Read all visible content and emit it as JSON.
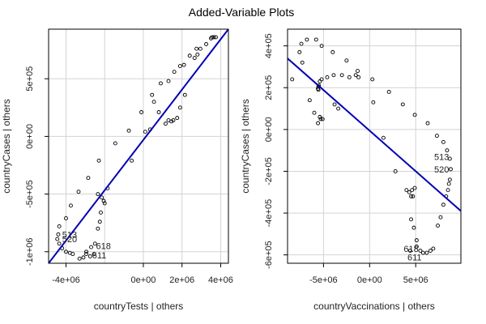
{
  "chart_data": {
    "type": "scatter",
    "title": "Added-Variable Plots",
    "panels": [
      {
        "id": "tests",
        "xlabel": "countryTests | others",
        "ylabel": "countryCases | others",
        "xlim": [
          -4900000.0,
          4400000.0
        ],
        "ylim": [
          -1100000.0,
          930000.0
        ],
        "xticks": [
          -4000000.0,
          0,
          2000000.0,
          4000000.0
        ],
        "xtick_labels": [
          "-4e+06",
          "0e+00",
          "2e+06",
          "4e+06"
        ],
        "yticks": [
          -1000000.0,
          -500000.0,
          0,
          500000.0
        ],
        "ytick_labels": [
          "-1e+06",
          "-5e+05",
          "0e+00",
          "5e+05"
        ],
        "xgrid": [
          -4000000.0,
          -2000000.0,
          0,
          2000000.0,
          4000000.0
        ],
        "ygrid": [
          -1000000.0,
          -500000.0,
          0,
          500000.0
        ],
        "fit_line": [
          [
            -4900000.0,
            -1100000.0
          ],
          [
            4400000.0,
            930000.0
          ]
        ],
        "points": [
          [
            3750000.0,
            860000.0
          ],
          [
            3650000.0,
            860000.0
          ],
          [
            3550000.0,
            860000.0
          ],
          [
            3500000.0,
            850000.0
          ],
          [
            3250000.0,
            800000.0
          ],
          [
            2950000.0,
            760000.0
          ],
          [
            2750000.0,
            760000.0
          ],
          [
            2800000.0,
            710000.0
          ],
          [
            2400000.0,
            700000.0
          ],
          [
            2650000.0,
            680000.0
          ],
          [
            2100000.0,
            620000.0
          ],
          [
            1900000.0,
            610000.0
          ],
          [
            1600000.0,
            560000.0
          ],
          [
            1300000.0,
            480000.0
          ],
          [
            900000.0,
            460000.0
          ],
          [
            450000.0,
            360000.0
          ],
          [
            550000.0,
            300000.0
          ],
          [
            2150000.0,
            360000.0
          ],
          [
            -100000.0,
            210000.0
          ],
          [
            800000.0,
            210000.0
          ],
          [
            1900000.0,
            250000.0
          ],
          [
            1750000.0,
            160000.0
          ],
          [
            1550000.0,
            140000.0
          ],
          [
            1450000.0,
            130000.0
          ],
          [
            1300000.0,
            140000.0
          ],
          [
            1150000.0,
            110000.0
          ],
          [
            350000.0,
            60000.0
          ],
          [
            100000.0,
            40000.0
          ],
          [
            -750000.0,
            50000.0
          ],
          [
            -1450000.0,
            -60000.0
          ],
          [
            -600000.0,
            -210000.0
          ],
          [
            -2300000.0,
            -210000.0
          ],
          [
            -1850000.0,
            -450000.0
          ],
          [
            -2350000.0,
            -500000.0
          ],
          [
            -2150000.0,
            -530000.0
          ],
          [
            -2050000.0,
            -560000.0
          ],
          [
            -2000000.0,
            -580000.0
          ],
          [
            -2850000.0,
            -360000.0
          ],
          [
            -3350000.0,
            -480000.0
          ],
          [
            -3750000.0,
            -600000.0
          ],
          [
            -2200000.0,
            -660000.0
          ],
          [
            -2250000.0,
            -740000.0
          ],
          [
            -2350000.0,
            -800000.0
          ],
          [
            -4000000.0,
            -710000.0
          ],
          [
            -4350000.0,
            -780000.0
          ],
          [
            -4400000.0,
            -850000.0
          ],
          [
            -4450000.0,
            -890000.0
          ],
          [
            -4350000.0,
            -930000.0
          ],
          [
            -4200000.0,
            -970000.0
          ],
          [
            -4000000.0,
            -1000000.0
          ],
          [
            -3800000.0,
            -1010000.0
          ],
          [
            -3650000.0,
            -1020000.0
          ],
          [
            -3300000.0,
            -1060000.0
          ],
          [
            -2950000.0,
            -1000000.0
          ],
          [
            -2700000.0,
            -960000.0
          ],
          [
            -2500000.0,
            -930000.0
          ],
          [
            -2550000.0,
            -1020000.0
          ],
          [
            -2950000.0,
            -1020000.0
          ],
          [
            -2750000.0,
            -1040000.0
          ],
          [
            -3100000.0,
            -1050000.0
          ]
        ],
        "labels": [
          {
            "text": "513",
            "x": -4200000.0,
            "y": -850000.0
          },
          {
            "text": "520",
            "x": -4200000.0,
            "y": -890000.0
          },
          {
            "text": "618",
            "x": -2450000.0,
            "y": -950000.0
          },
          {
            "text": "611",
            "x": -2650000.0,
            "y": -1030000.0
          }
        ]
      },
      {
        "id": "vaccinations",
        "xlabel": "countryVaccinations | others",
        "ylabel": "countryCases | others",
        "xlim": [
          -8900000.0,
          9900000.0
        ],
        "ylim": [
          -640000.0,
          480000.0
        ],
        "xticks": [
          -5000000.0,
          0,
          5000000.0
        ],
        "xtick_labels": [
          "-5e+06",
          "0e+00",
          "5e+06"
        ],
        "yticks": [
          -600000.0,
          -400000.0,
          -200000.0,
          0,
          200000.0,
          400000.0
        ],
        "ytick_labels": [
          "-6e+05",
          "-4e+05",
          "-2e+05",
          "0e+00",
          "2e+05",
          "4e+05"
        ],
        "xgrid": [
          -5000000.0,
          0,
          5000000.0
        ],
        "ygrid": [
          -600000.0,
          -400000.0,
          -200000.0,
          0,
          200000.0,
          400000.0
        ],
        "fit_line": [
          [
            -8900000.0,
            340000.0
          ],
          [
            9900000.0,
            -390000.0
          ]
        ],
        "points": [
          [
            -7600000.0,
            370000.0
          ],
          [
            -7400000.0,
            410000.0
          ],
          [
            -6800000.0,
            430000.0
          ],
          [
            -5800000.0,
            430000.0
          ],
          [
            -5200000.0,
            400000.0
          ],
          [
            -7300000.0,
            320000.0
          ],
          [
            -8400000.0,
            240000.0
          ],
          [
            -5400000.0,
            230000.0
          ],
          [
            -4600000.0,
            250000.0
          ],
          [
            -3900000.0,
            260000.0
          ],
          [
            -3000000.0,
            260000.0
          ],
          [
            -2200000.0,
            250000.0
          ],
          [
            -1500000.0,
            260000.0
          ],
          [
            -1200000.0,
            250000.0
          ],
          [
            -1300000.0,
            280000.0
          ],
          [
            -2500000.0,
            330000.0
          ],
          [
            -4000000.0,
            370000.0
          ],
          [
            -5550000.0,
            205000.0
          ],
          [
            -5550000.0,
            190000.0
          ],
          [
            -5600000.0,
            195000.0
          ],
          [
            -5500000.0,
            210000.0
          ],
          [
            -5200000.0,
            240000.0
          ],
          [
            -6500000.0,
            140000.0
          ],
          [
            -6000000.0,
            80000.0
          ],
          [
            -5600000.0,
            30000.0
          ],
          [
            -5300000.0,
            50000.0
          ],
          [
            -5100000.0,
            50000.0
          ],
          [
            -5400000.0,
            60000.0
          ],
          [
            -3800000.0,
            120000.0
          ],
          [
            -3400000.0,
            100000.0
          ],
          [
            300000.0,
            240000.0
          ],
          [
            400000.0,
            130000.0
          ],
          [
            2100000.0,
            180000.0
          ],
          [
            3600000.0,
            120000.0
          ],
          [
            4900000.0,
            70000.0
          ],
          [
            6300000.0,
            30000.0
          ],
          [
            7300000.0,
            -30000.0
          ],
          [
            8000000.0,
            -60000.0
          ],
          [
            8400000.0,
            -100000.0
          ],
          [
            8700000.0,
            -140000.0
          ],
          [
            8800000.0,
            -190000.0
          ],
          [
            8700000.0,
            -240000.0
          ],
          [
            8600000.0,
            -260000.0
          ],
          [
            8500000.0,
            -290000.0
          ],
          [
            8300000.0,
            -320000.0
          ],
          [
            8000000.0,
            -360000.0
          ],
          [
            7700000.0,
            -420000.0
          ],
          [
            7400000.0,
            -460000.0
          ],
          [
            1500000.0,
            -40000.0
          ],
          [
            2800000.0,
            -200000.0
          ],
          [
            4000000.0,
            -290000.0
          ],
          [
            4300000.0,
            -300000.0
          ],
          [
            4500000.0,
            -320000.0
          ],
          [
            4700000.0,
            -320000.0
          ],
          [
            4600000.0,
            -290000.0
          ],
          [
            4900000.0,
            -280000.0
          ],
          [
            4500000.0,
            -430000.0
          ],
          [
            4800000.0,
            -470000.0
          ],
          [
            5100000.0,
            -530000.0
          ],
          [
            5100000.0,
            -560000.0
          ],
          [
            5500000.0,
            -580000.0
          ],
          [
            5800000.0,
            -590000.0
          ],
          [
            6200000.0,
            -590000.0
          ],
          [
            6600000.0,
            -580000.0
          ],
          [
            6900000.0,
            -570000.0
          ],
          [
            4400000.0,
            -580000.0
          ]
        ],
        "labels": [
          {
            "text": "513",
            "x": 7000000.0,
            "y": -130000.0
          },
          {
            "text": "520",
            "x": 7000000.0,
            "y": -190000.0
          },
          {
            "text": "618",
            "x": 3700000.0,
            "y": -570000.0
          },
          {
            "text": "611",
            "x": 4100000.0,
            "y": -610000.0
          }
        ]
      }
    ]
  },
  "colors": {
    "fit_line": "#0000b4",
    "points": "#000000",
    "grid": "#d3d3d3"
  }
}
